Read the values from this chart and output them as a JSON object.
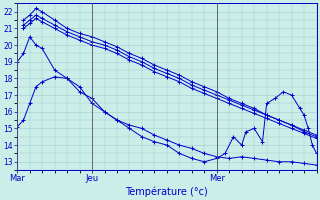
{
  "title": "Température (°c)",
  "bg_color": "#cceee8",
  "grid_color": "#99cccc",
  "line_color": "#0000cc",
  "vline_color": "#555566",
  "marker": "+",
  "markersize": 3,
  "linewidth": 0.7,
  "ylim": [
    12.5,
    22.5
  ],
  "yticks": [
    13,
    14,
    15,
    16,
    17,
    18,
    19,
    20,
    21,
    22
  ],
  "xlim": [
    0,
    144
  ],
  "day_labels": [
    "Mar",
    "Jeu",
    "Mer"
  ],
  "day_positions": [
    0,
    36,
    96
  ],
  "series": [
    {
      "x": [
        0,
        3,
        6,
        9,
        12,
        18,
        24,
        30,
        36,
        42,
        48,
        54,
        60,
        66,
        72,
        78,
        84,
        90,
        96,
        102,
        108,
        114,
        120,
        126,
        132,
        138,
        144
      ],
      "y": [
        15.1,
        15.5,
        16.5,
        17.5,
        17.8,
        18.1,
        18.0,
        17.2,
        16.8,
        16.0,
        15.5,
        15.2,
        15.0,
        14.6,
        14.3,
        14.0,
        13.8,
        13.5,
        13.3,
        13.2,
        13.3,
        13.2,
        13.1,
        13.0,
        13.0,
        12.9,
        12.8
      ]
    },
    {
      "x": [
        3,
        6,
        9,
        12,
        18,
        24,
        30,
        36,
        42,
        48,
        54,
        60,
        66,
        72,
        78,
        84,
        90,
        96,
        102,
        108,
        114,
        120,
        126,
        132,
        138,
        144
      ],
      "y": [
        21.5,
        21.8,
        22.2,
        22.0,
        21.5,
        21.0,
        20.7,
        20.5,
        20.2,
        19.9,
        19.5,
        19.2,
        18.8,
        18.5,
        18.2,
        17.8,
        17.5,
        17.2,
        16.8,
        16.5,
        16.2,
        15.8,
        15.5,
        15.2,
        14.8,
        14.5
      ]
    },
    {
      "x": [
        3,
        6,
        9,
        12,
        18,
        24,
        30,
        36,
        42,
        48,
        54,
        60,
        66,
        72,
        78,
        84,
        90,
        96,
        102,
        108,
        114,
        120,
        126,
        132,
        138,
        144
      ],
      "y": [
        21.2,
        21.5,
        21.8,
        21.6,
        21.2,
        20.8,
        20.5,
        20.2,
        20.0,
        19.7,
        19.3,
        19.0,
        18.6,
        18.3,
        18.0,
        17.6,
        17.3,
        17.0,
        16.7,
        16.4,
        16.1,
        15.8,
        15.5,
        15.2,
        14.9,
        14.6
      ]
    },
    {
      "x": [
        3,
        6,
        9,
        12,
        18,
        24,
        30,
        36,
        42,
        48,
        54,
        60,
        66,
        72,
        78,
        84,
        90,
        96,
        102,
        108,
        114,
        120,
        126,
        132,
        138,
        144
      ],
      "y": [
        21.0,
        21.3,
        21.6,
        21.4,
        21.0,
        20.6,
        20.3,
        20.0,
        19.8,
        19.5,
        19.1,
        18.8,
        18.4,
        18.1,
        17.8,
        17.4,
        17.1,
        16.8,
        16.5,
        16.2,
        15.9,
        15.6,
        15.3,
        15.0,
        14.7,
        14.4
      ]
    },
    {
      "x": [
        0,
        3,
        6,
        9,
        12,
        18,
        24,
        30,
        36,
        42,
        48,
        54,
        60,
        66,
        72,
        78,
        84,
        90,
        96,
        100,
        104,
        108,
        110,
        114,
        118,
        120,
        124,
        128,
        132,
        136,
        138,
        140,
        142,
        144
      ],
      "y": [
        19.0,
        19.5,
        20.5,
        20.0,
        19.8,
        18.5,
        18.0,
        17.5,
        16.5,
        16.0,
        15.5,
        15.0,
        14.5,
        14.2,
        14.0,
        13.5,
        13.2,
        13.0,
        13.2,
        13.5,
        14.5,
        14.0,
        14.8,
        15.0,
        14.2,
        16.5,
        16.8,
        17.2,
        17.0,
        16.2,
        15.8,
        15.0,
        14.0,
        13.5
      ]
    }
  ]
}
